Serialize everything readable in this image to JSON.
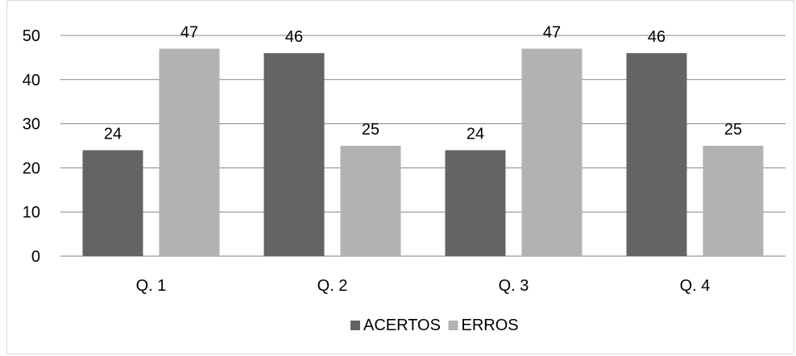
{
  "chart_data": {
    "type": "bar",
    "categories": [
      "Q. 1",
      "Q. 2",
      "Q. 3",
      "Q. 4"
    ],
    "series": [
      {
        "name": "ACERTOS",
        "values": [
          24,
          46,
          24,
          46
        ],
        "color": "#646464"
      },
      {
        "name": "ERROS",
        "values": [
          47,
          25,
          47,
          25
        ],
        "color": "#b2b2b2"
      }
    ],
    "title": "",
    "xlabel": "",
    "ylabel": "",
    "ylim": [
      0,
      50
    ],
    "yticks": [
      0,
      10,
      20,
      30,
      40,
      50
    ],
    "grid": true,
    "data_labels": true,
    "legend_position": "bottom"
  }
}
